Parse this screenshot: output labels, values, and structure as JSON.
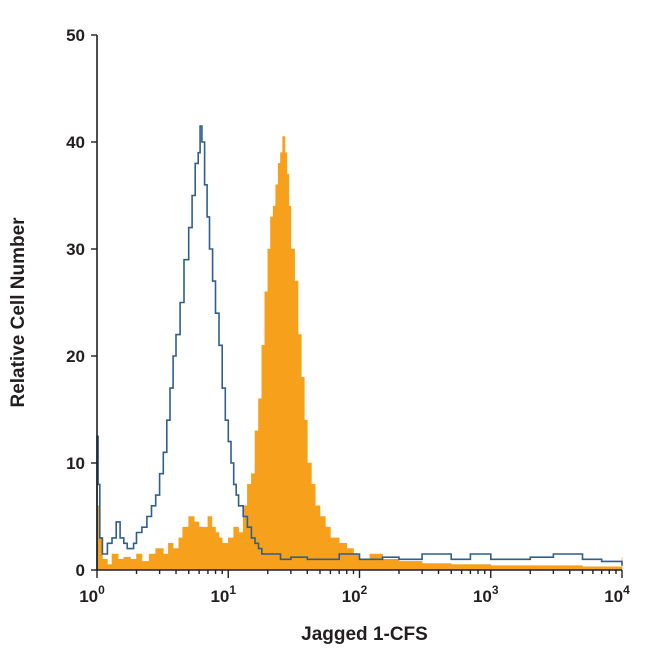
{
  "chart_data": {
    "type": "area",
    "xlabel": "Jagged 1-CFS",
    "ylabel": "Relative Cell Number",
    "x_scale": "log",
    "xlim": [
      1,
      10000
    ],
    "ylim": [
      0,
      50
    ],
    "y_ticks": [
      "0",
      "10",
      "20",
      "30",
      "40",
      "50"
    ],
    "x_ticks": [
      {
        "value": 1,
        "base": "10",
        "exp": "0"
      },
      {
        "value": 10,
        "base": "10",
        "exp": "1"
      },
      {
        "value": 100,
        "base": "10",
        "exp": "2"
      },
      {
        "value": 1000,
        "base": "10",
        "exp": "3"
      },
      {
        "value": 10000,
        "base": "10",
        "exp": "4"
      }
    ],
    "grid": false,
    "series": [
      {
        "style": "filled",
        "color": "#f7a01c",
        "points": [
          [
            1.0,
            6
          ],
          [
            1.05,
            3
          ],
          [
            1.1,
            1
          ],
          [
            1.2,
            0.5
          ],
          [
            1.3,
            1.5
          ],
          [
            1.45,
            1
          ],
          [
            1.6,
            1.2
          ],
          [
            1.8,
            1
          ],
          [
            2.0,
            1.5
          ],
          [
            2.2,
            0.8
          ],
          [
            2.5,
            1.5
          ],
          [
            2.8,
            2
          ],
          [
            3.2,
            1.5
          ],
          [
            3.5,
            2.5
          ],
          [
            3.8,
            2
          ],
          [
            4.2,
            3
          ],
          [
            4.5,
            4
          ],
          [
            5.0,
            5
          ],
          [
            5.5,
            4.5
          ],
          [
            6.0,
            4
          ],
          [
            6.5,
            4
          ],
          [
            7.0,
            5
          ],
          [
            7.5,
            4
          ],
          [
            8.0,
            3.5
          ],
          [
            8.5,
            3
          ],
          [
            9.0,
            2.5
          ],
          [
            10.0,
            3
          ],
          [
            11.0,
            4
          ],
          [
            12.0,
            3.5
          ],
          [
            13.0,
            6
          ],
          [
            14.0,
            8
          ],
          [
            15.0,
            9
          ],
          [
            16.0,
            13
          ],
          [
            17.0,
            16
          ],
          [
            18.0,
            21
          ],
          [
            19.0,
            26
          ],
          [
            20.0,
            30
          ],
          [
            21.0,
            33
          ],
          [
            22.0,
            34
          ],
          [
            23.0,
            36
          ],
          [
            24.0,
            38
          ],
          [
            25.0,
            39
          ],
          [
            26.0,
            40.5
          ],
          [
            27.0,
            39
          ],
          [
            28.0,
            37
          ],
          [
            29.0,
            34
          ],
          [
            30.0,
            30
          ],
          [
            32.0,
            27
          ],
          [
            34.0,
            22
          ],
          [
            36.0,
            18
          ],
          [
            38.0,
            14
          ],
          [
            40.0,
            10
          ],
          [
            43.0,
            8
          ],
          [
            46.0,
            6
          ],
          [
            50.0,
            5
          ],
          [
            55.0,
            4
          ],
          [
            60.0,
            3
          ],
          [
            70.0,
            2.5
          ],
          [
            80.0,
            2
          ],
          [
            90.0,
            1.5
          ],
          [
            100.0,
            1
          ],
          [
            120.0,
            1.5
          ],
          [
            150.0,
            1
          ],
          [
            200.0,
            0.8
          ],
          [
            300.0,
            0.6
          ],
          [
            500.0,
            0.5
          ],
          [
            1000.0,
            0.4
          ],
          [
            2000.0,
            0.4
          ],
          [
            5000.0,
            0.3
          ],
          [
            9500.0,
            0.3
          ],
          [
            10000.0,
            1.2
          ]
        ]
      },
      {
        "style": "outline",
        "color": "#2f5f8a",
        "points": [
          [
            1.0,
            12.5
          ],
          [
            1.02,
            8
          ],
          [
            1.05,
            3
          ],
          [
            1.1,
            1.5
          ],
          [
            1.2,
            2.5
          ],
          [
            1.3,
            3
          ],
          [
            1.4,
            4.5
          ],
          [
            1.5,
            3
          ],
          [
            1.6,
            2.5
          ],
          [
            1.7,
            2
          ],
          [
            1.9,
            2.5
          ],
          [
            2.0,
            3.5
          ],
          [
            2.2,
            4
          ],
          [
            2.4,
            5
          ],
          [
            2.6,
            6
          ],
          [
            2.8,
            7
          ],
          [
            3.0,
            9
          ],
          [
            3.2,
            11
          ],
          [
            3.4,
            14
          ],
          [
            3.6,
            17
          ],
          [
            3.8,
            20
          ],
          [
            4.0,
            22
          ],
          [
            4.3,
            25
          ],
          [
            4.6,
            29
          ],
          [
            5.0,
            32
          ],
          [
            5.3,
            35
          ],
          [
            5.6,
            38
          ],
          [
            5.9,
            39
          ],
          [
            6.1,
            41.5
          ],
          [
            6.3,
            40
          ],
          [
            6.6,
            36
          ],
          [
            6.9,
            33
          ],
          [
            7.2,
            30
          ],
          [
            7.6,
            27
          ],
          [
            8.0,
            24
          ],
          [
            8.5,
            21
          ],
          [
            9.0,
            17
          ],
          [
            9.5,
            14
          ],
          [
            10.0,
            12
          ],
          [
            10.5,
            10
          ],
          [
            11.0,
            8
          ],
          [
            11.5,
            7
          ],
          [
            12.0,
            6
          ],
          [
            13.0,
            5
          ],
          [
            14.0,
            4
          ],
          [
            15.0,
            3
          ],
          [
            16.0,
            2.5
          ],
          [
            17.0,
            2
          ],
          [
            18.0,
            1.5
          ],
          [
            20.0,
            1.5
          ],
          [
            25.0,
            1
          ],
          [
            30.0,
            1.2
          ],
          [
            40.0,
            1
          ],
          [
            50.0,
            1
          ],
          [
            70.0,
            1.5
          ],
          [
            100.0,
            1
          ],
          [
            150.0,
            1.2
          ],
          [
            200.0,
            1
          ],
          [
            300.0,
            1.5
          ],
          [
            500.0,
            1
          ],
          [
            700.0,
            1.5
          ],
          [
            1000.0,
            1
          ],
          [
            2000.0,
            1.2
          ],
          [
            3000.0,
            1.5
          ],
          [
            5000.0,
            1
          ],
          [
            7000.0,
            0.8
          ],
          [
            10000.0,
            0.4
          ]
        ]
      }
    ]
  }
}
